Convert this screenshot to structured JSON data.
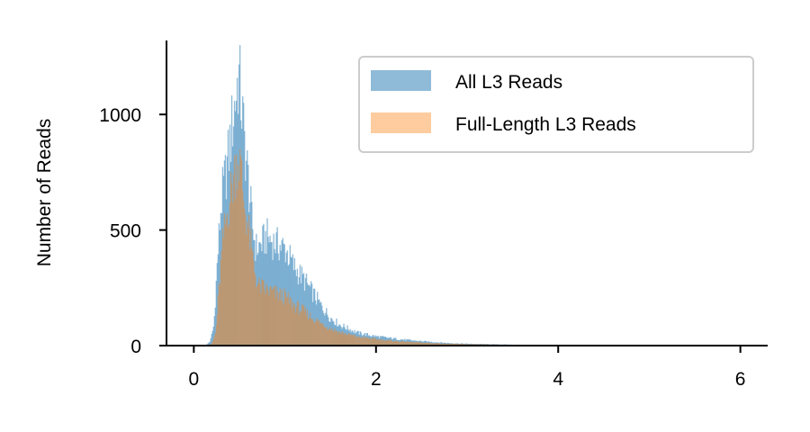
{
  "chart_data": {
    "type": "histogram",
    "title": "",
    "xlabel": "",
    "ylabel": "Number of Reads",
    "xlim": [
      -0.3,
      6.3
    ],
    "ylim": [
      0,
      1320
    ],
    "xticks": [
      0,
      2,
      4,
      6
    ],
    "yticks": [
      0,
      500,
      1000
    ],
    "grid": false,
    "legend_position": "top-right",
    "bin_width": 0.01,
    "series": [
      {
        "name": "All L3 Reads",
        "color": "#1f77b4",
        "opacity": 0.5,
        "profile": [
          [
            0.13,
            0
          ],
          [
            0.18,
            20
          ],
          [
            0.22,
            90
          ],
          [
            0.26,
            380
          ],
          [
            0.3,
            620
          ],
          [
            0.34,
            720
          ],
          [
            0.38,
            820
          ],
          [
            0.42,
            960
          ],
          [
            0.46,
            1080
          ],
          [
            0.49,
            1180
          ],
          [
            0.52,
            1050
          ],
          [
            0.56,
            860
          ],
          [
            0.6,
            700
          ],
          [
            0.64,
            520
          ],
          [
            0.68,
            420
          ],
          [
            0.72,
            430
          ],
          [
            0.8,
            470
          ],
          [
            0.9,
            440
          ],
          [
            1.0,
            420
          ],
          [
            1.1,
            340
          ],
          [
            1.2,
            290
          ],
          [
            1.3,
            230
          ],
          [
            1.4,
            170
          ],
          [
            1.5,
            120
          ],
          [
            1.6,
            90
          ],
          [
            1.8,
            55
          ],
          [
            2.0,
            40
          ],
          [
            2.2,
            30
          ],
          [
            2.4,
            22
          ],
          [
            2.6,
            16
          ],
          [
            2.8,
            11
          ],
          [
            3.0,
            8
          ],
          [
            3.5,
            4
          ],
          [
            4.0,
            2
          ],
          [
            5.0,
            1
          ],
          [
            6.2,
            0
          ]
        ]
      },
      {
        "name": "Full-Length L3 Reads",
        "color": "#ff7f0e",
        "opacity": 0.4,
        "profile": [
          [
            0.15,
            0
          ],
          [
            0.2,
            10
          ],
          [
            0.24,
            60
          ],
          [
            0.28,
            270
          ],
          [
            0.32,
            460
          ],
          [
            0.36,
            560
          ],
          [
            0.4,
            650
          ],
          [
            0.44,
            740
          ],
          [
            0.48,
            820
          ],
          [
            0.51,
            780
          ],
          [
            0.55,
            620
          ],
          [
            0.6,
            500
          ],
          [
            0.65,
            360
          ],
          [
            0.7,
            260
          ],
          [
            0.8,
            240
          ],
          [
            0.9,
            225
          ],
          [
            1.0,
            210
          ],
          [
            1.1,
            175
          ],
          [
            1.2,
            150
          ],
          [
            1.3,
            120
          ],
          [
            1.4,
            95
          ],
          [
            1.5,
            75
          ],
          [
            1.6,
            58
          ],
          [
            1.8,
            38
          ],
          [
            2.0,
            28
          ],
          [
            2.2,
            20
          ],
          [
            2.4,
            15
          ],
          [
            2.6,
            11
          ],
          [
            2.8,
            8
          ],
          [
            3.0,
            6
          ],
          [
            3.5,
            3
          ],
          [
            4.0,
            1
          ],
          [
            5.0,
            0
          ],
          [
            6.2,
            0
          ]
        ]
      }
    ]
  }
}
